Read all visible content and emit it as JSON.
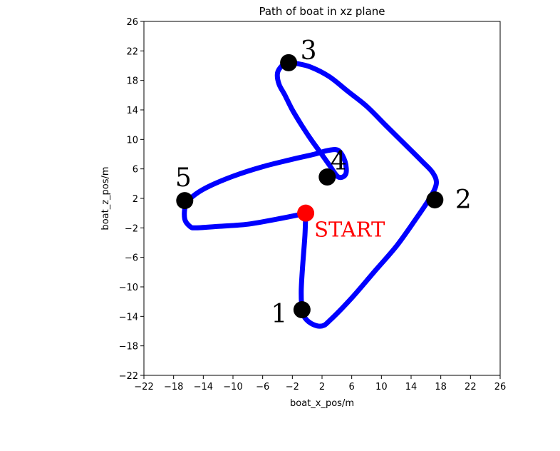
{
  "chart_data": {
    "type": "line",
    "title": "Path of boat in xz plane",
    "xlabel": "boat_x_pos/m",
    "ylabel": "boat_z_pos/m",
    "xlim": [
      -22,
      26
    ],
    "ylim": [
      -22,
      26
    ],
    "xticks": [
      -22,
      -18,
      -14,
      -10,
      -6,
      -2,
      2,
      6,
      10,
      14,
      18,
      22,
      26
    ],
    "yticks": [
      -22,
      -18,
      -14,
      -10,
      -6,
      -2,
      2,
      6,
      10,
      14,
      18,
      22,
      26
    ],
    "xtick_labels": [
      "−22",
      "−18",
      "−14",
      "−10",
      "−6",
      "−2",
      "2",
      "6",
      "10",
      "14",
      "18",
      "22",
      "26"
    ],
    "ytick_labels": [
      "−22",
      "−18",
      "−14",
      "−10",
      "−6",
      "−2",
      "2",
      "6",
      "10",
      "14",
      "18",
      "22",
      "26"
    ],
    "grid": false,
    "path": {
      "color": "#0000ff",
      "x": [
        -0.2,
        -0.3,
        -0.6,
        -0.8,
        -0.7,
        -0.3,
        0.8,
        2.0,
        3.0,
        6.0,
        9.0,
        12.0,
        14.5,
        16.5,
        17.4,
        16.9,
        15.5,
        13.0,
        10.5,
        8.0,
        5.5,
        3.0,
        0.5,
        -1.5,
        -2.7,
        -3.4,
        -4.0,
        -3.8,
        -3.0,
        -2.0,
        -0.8,
        0.5,
        1.8,
        3.0,
        4.2,
        5.2,
        5.1,
        4.2,
        2.8,
        1.0,
        -2.0,
        -6.0,
        -10.0,
        -13.5,
        -15.5,
        -16.4,
        -16.5,
        -15.8,
        -15.0,
        -12.0,
        -8.0,
        -4.0,
        -1.5,
        -0.2
      ],
      "y": [
        0.0,
        -3.0,
        -7.0,
        -10.5,
        -13.0,
        -14.2,
        -15.1,
        -15.3,
        -14.6,
        -11.5,
        -8.0,
        -4.5,
        -1.0,
        2.0,
        4.0,
        5.5,
        7.0,
        9.5,
        12.0,
        14.5,
        16.5,
        18.5,
        19.8,
        20.3,
        20.4,
        20.0,
        19.0,
        17.5,
        16.0,
        14.0,
        12.0,
        10.0,
        8.2,
        6.5,
        4.9,
        5.3,
        7.0,
        8.5,
        8.5,
        8.0,
        7.3,
        6.3,
        5.0,
        3.5,
        2.2,
        1.0,
        -0.8,
        -1.8,
        -2.0,
        -1.8,
        -1.5,
        -0.8,
        -0.3,
        0.0
      ],
      "linewidth": 7
    },
    "waypoints": [
      {
        "label": "1",
        "x": -0.7,
        "y": -13.1
      },
      {
        "label": "2",
        "x": 17.2,
        "y": 1.8
      },
      {
        "label": "3",
        "x": -2.5,
        "y": 20.4
      },
      {
        "label": "4",
        "x": 2.7,
        "y": 4.9
      },
      {
        "label": "5",
        "x": -16.5,
        "y": 1.7
      }
    ],
    "start": {
      "label": "START",
      "x": -0.2,
      "y": 0.0,
      "color": "#ff0000"
    }
  }
}
